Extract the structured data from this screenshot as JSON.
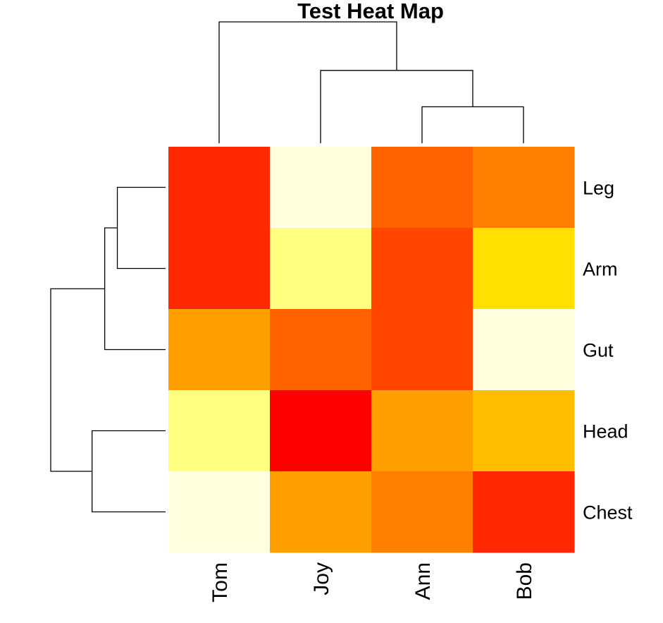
{
  "chart_data": {
    "type": "heatmap",
    "title": "Test Heat Map",
    "xlabel": "",
    "ylabel": "",
    "columns": [
      "Tom",
      "Joy",
      "Ann",
      "Bob"
    ],
    "rows": [
      "Leg",
      "Arm",
      "Gut",
      "Head",
      "Chest"
    ],
    "color_scale": [
      "#FF0000",
      "#FF2800",
      "#FF4500",
      "#FF6200",
      "#FF7F00",
      "#FF9F00",
      "#FFBF00",
      "#FFE000",
      "#FFFF80",
      "#FFFFDD"
    ],
    "values": [
      [
        1,
        9,
        3,
        4
      ],
      [
        1,
        8,
        2,
        7
      ],
      [
        5,
        3,
        2,
        9
      ],
      [
        8,
        0,
        5,
        6
      ],
      [
        9,
        5,
        4,
        1
      ]
    ],
    "column_dendrogram": {
      "merges": [
        {
          "left": "Ann",
          "right": "Bob",
          "height": 0.3
        },
        {
          "left": "Joy",
          "right": "Ann+Bob",
          "height": 0.6
        },
        {
          "left": "Tom",
          "right": "Joy+Ann+Bob",
          "height": 1.0
        }
      ]
    },
    "row_dendrogram": {
      "merges": [
        {
          "top": "Leg",
          "bottom": "Arm",
          "height": 0.42
        },
        {
          "top": "Leg+Arm",
          "bottom": "Gut",
          "height": 0.53
        },
        {
          "top": "Head",
          "bottom": "Chest",
          "height": 0.64
        },
        {
          "top": "Leg+Arm+Gut",
          "bottom": "Head+Chest",
          "height": 1.0
        }
      ]
    }
  }
}
